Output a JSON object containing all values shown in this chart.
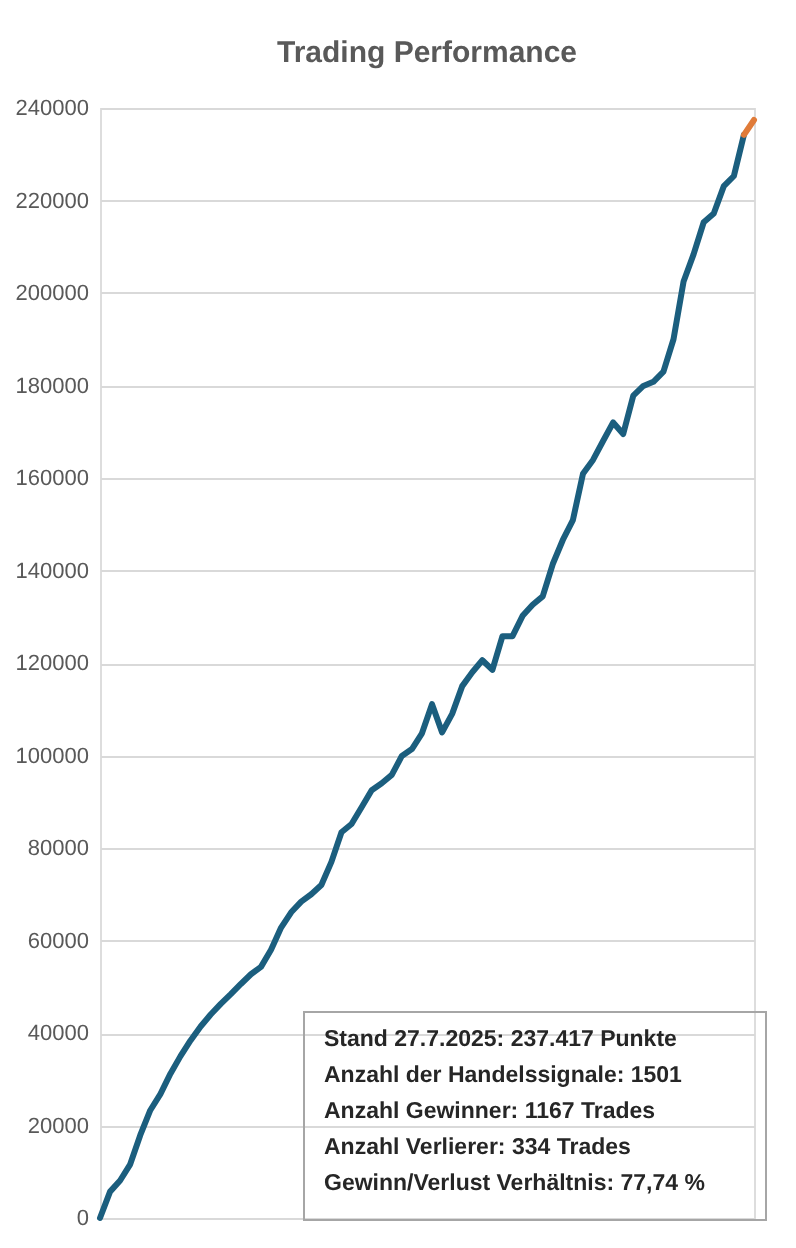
{
  "chart_data": {
    "type": "line",
    "title": "Trading Performance",
    "categories": [
      null,
      null,
      null,
      null,
      null,
      null,
      null,
      null,
      null,
      null,
      null,
      null,
      null,
      null,
      null,
      null,
      null,
      null,
      null,
      null,
      null,
      null,
      null,
      null,
      null,
      null,
      null,
      null,
      null,
      null,
      null,
      null,
      null,
      null,
      null,
      null,
      null,
      null,
      null,
      null,
      null,
      null,
      null,
      null,
      null,
      null,
      null,
      null,
      null,
      null,
      null,
      null,
      null,
      null,
      null,
      null,
      null,
      null,
      null,
      null,
      null,
      null,
      null,
      null,
      null,
      null
    ],
    "series": [
      {
        "color": "#1b5e7e",
        "values": [
          0,
          5700,
          8100,
          11600,
          17900,
          23300,
          26800,
          31200,
          35000,
          38400,
          41400,
          44000,
          46300,
          48400,
          50600,
          52700,
          54300,
          58000,
          62800,
          66100,
          68400,
          70000,
          72000,
          77000,
          83400,
          85200,
          88800,
          92500,
          94000,
          95800,
          99900,
          101400,
          104800,
          111100,
          105000,
          109000,
          115000,
          118000,
          120600,
          118500,
          125800,
          125800,
          130200,
          132600,
          134400,
          141400,
          146600,
          150900,
          160900,
          163900,
          168000,
          172000,
          169500,
          177800,
          179900,
          180800,
          183000,
          190000,
          202500,
          208400,
          215300,
          217200,
          223100,
          225300,
          234200,
          null
        ]
      },
      {
        "color": "#e07b39",
        "values": [
          null,
          null,
          null,
          null,
          null,
          null,
          null,
          null,
          null,
          null,
          null,
          null,
          null,
          null,
          null,
          null,
          null,
          null,
          null,
          null,
          null,
          null,
          null,
          null,
          null,
          null,
          null,
          null,
          null,
          null,
          null,
          null,
          null,
          null,
          null,
          null,
          null,
          null,
          null,
          null,
          null,
          null,
          null,
          null,
          null,
          null,
          null,
          null,
          null,
          null,
          null,
          null,
          null,
          null,
          null,
          null,
          null,
          null,
          null,
          null,
          null,
          null,
          null,
          null,
          234200,
          237400
        ]
      }
    ],
    "ylim": [
      0,
      240000
    ],
    "yticks": [
      0,
      20000,
      40000,
      60000,
      80000,
      100000,
      120000,
      140000,
      160000,
      180000,
      200000,
      220000,
      240000
    ],
    "grid": "y",
    "marker": "none",
    "line_style": "solid",
    "tick_labels": "y",
    "annotations": [
      "Stand 27.7.2025: 237.417 Punkte",
      "Anzahl der Handelssignale: 1501",
      "Anzahl Gewinner: 1167 Trades",
      "Anzahl Verlierer: 334 Trades",
      "Gewinn/Verlust Verhältnis: 77,74 %"
    ]
  }
}
